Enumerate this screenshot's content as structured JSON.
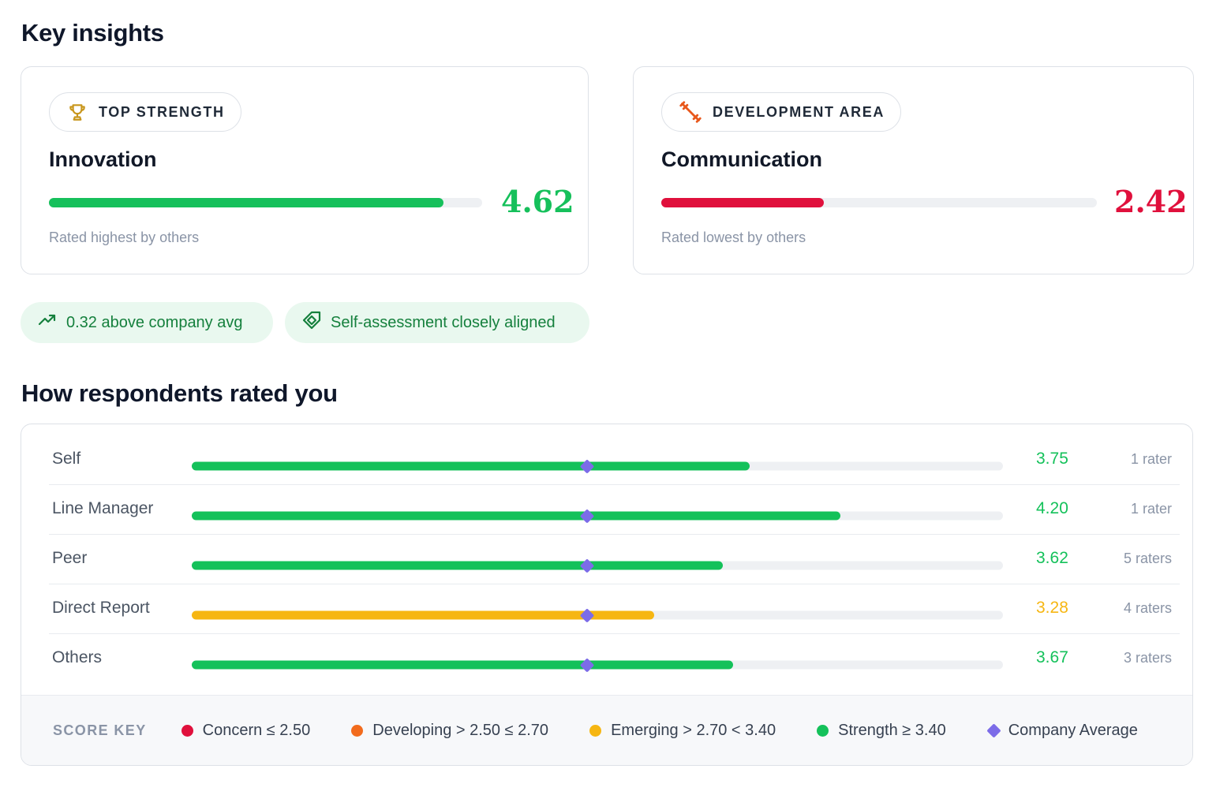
{
  "key_insights": {
    "title": "Key insights",
    "top_strength": {
      "label": "TOP STRENGTH",
      "icon": "trophy-icon",
      "name": "Innovation",
      "score": "4.62",
      "score_value": 4.62,
      "note": "Rated highest by others",
      "color": "#16c05b"
    },
    "development_area": {
      "label": "DEVELOPMENT AREA",
      "icon": "dumbbell-icon",
      "name": "Communication",
      "score": "2.42",
      "score_value": 2.42,
      "note": "Rated lowest by others",
      "color": "#e0103c"
    },
    "chips": {
      "avg": {
        "icon": "trend-up-icon",
        "text": "0.32 above company avg"
      },
      "self": {
        "icon": "tag-icon",
        "text": "Self-assessment closely aligned"
      }
    }
  },
  "respondents": {
    "title": "How respondents rated you",
    "scale_max": 5,
    "company_average": 2.95,
    "rows": [
      {
        "label": "Self",
        "score": "3.75",
        "value": 3.75,
        "raters": "1 rater",
        "color": "#14c15a"
      },
      {
        "label": "Line Manager",
        "score": "4.20",
        "value": 4.2,
        "raters": "1 rater",
        "color": "#14c15a"
      },
      {
        "label": "Peer",
        "score": "3.62",
        "value": 3.62,
        "raters": "5 raters",
        "color": "#14c15a"
      },
      {
        "label": "Direct Report",
        "score": "3.28",
        "value": 3.28,
        "raters": "4 raters",
        "color": "#f6b612"
      },
      {
        "label": "Others",
        "score": "3.67",
        "value": 3.67,
        "raters": "3 raters",
        "color": "#14c15a"
      }
    ],
    "score_key": {
      "title": "SCORE KEY",
      "items": [
        {
          "label": "Concern ≤ 2.50",
          "color": "#e0103c",
          "shape": "dot"
        },
        {
          "label": "Developing > 2.50 ≤ 2.70",
          "color": "#f26b1d",
          "shape": "dot"
        },
        {
          "label": "Emerging > 2.70 < 3.40",
          "color": "#f6b612",
          "shape": "dot"
        },
        {
          "label": "Strength ≥ 3.40",
          "color": "#14c15a",
          "shape": "dot"
        },
        {
          "label": "Company Average",
          "color": "#7c6ce8",
          "shape": "diamond"
        }
      ]
    }
  }
}
